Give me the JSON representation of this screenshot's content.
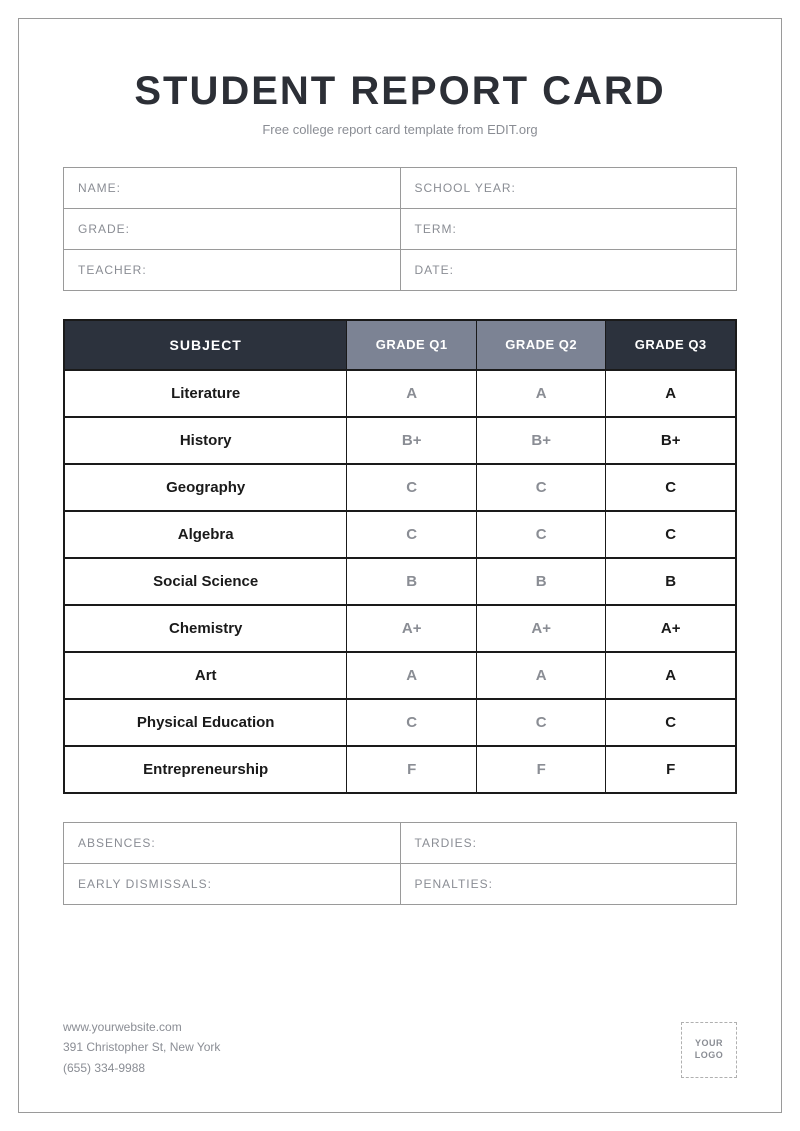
{
  "header": {
    "title": "STUDENT REPORT CARD",
    "subtitle": "Free college report card template from EDIT.org"
  },
  "info": {
    "rows": [
      {
        "left": "NAME:",
        "right": "SCHOOL YEAR:"
      },
      {
        "left": "GRADE:",
        "right": "TERM:"
      },
      {
        "left": "TEACHER:",
        "right": "DATE:"
      }
    ]
  },
  "grades": {
    "columns": [
      "SUBJECT",
      "GRADE Q1",
      "GRADE Q2",
      "GRADE Q3"
    ],
    "header_colors": {
      "subject": "#2c323d",
      "q1": "#7c8394",
      "q2": "#7c8394",
      "q3": "#2c323d"
    },
    "rows": [
      {
        "subject": "Literature",
        "q1": "A",
        "q2": "A",
        "q3": "A"
      },
      {
        "subject": "History",
        "q1": "B+",
        "q2": "B+",
        "q3": "B+"
      },
      {
        "subject": "Geography",
        "q1": "C",
        "q2": "C",
        "q3": "C"
      },
      {
        "subject": "Algebra",
        "q1": "C",
        "q2": "C",
        "q3": "C"
      },
      {
        "subject": "Social Science",
        "q1": "B",
        "q2": "B",
        "q3": "B"
      },
      {
        "subject": "Chemistry",
        "q1": "A+",
        "q2": "A+",
        "q3": "A+"
      },
      {
        "subject": "Art",
        "q1": "A",
        "q2": "A",
        "q3": "A"
      },
      {
        "subject": "Physical Education",
        "q1": "C",
        "q2": "C",
        "q3": "C"
      },
      {
        "subject": "Entrepreneurship",
        "q1": "F",
        "q2": "F",
        "q3": "F"
      }
    ]
  },
  "attendance": {
    "rows": [
      {
        "left": "ABSENCES:",
        "right": "TARDIES:"
      },
      {
        "left": "EARLY DISMISSALS:",
        "right": "PENALTIES:"
      }
    ]
  },
  "footer": {
    "website": "www.yourwebsite.com",
    "address": "391 Christopher St, New York",
    "phone": "(655) 334-9988",
    "logo_text": "YOUR LOGO"
  },
  "colors": {
    "text_primary": "#2c2f36",
    "text_muted": "#8a8d94",
    "border": "#9a9a9a",
    "table_border": "#1a1a1a"
  }
}
